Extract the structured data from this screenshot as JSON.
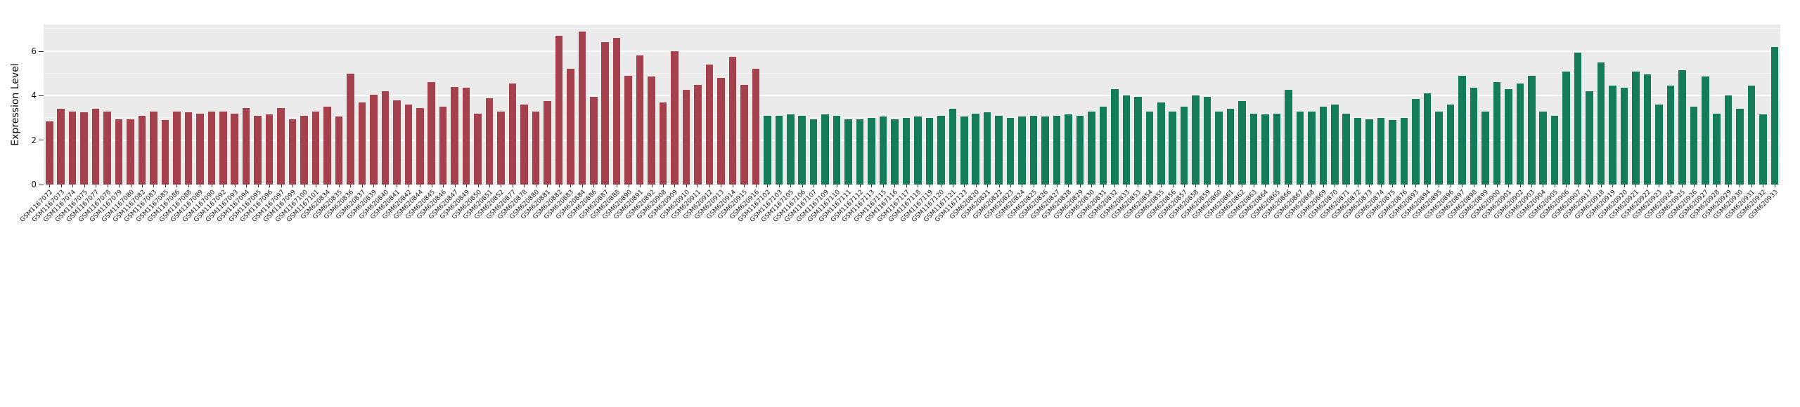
{
  "chart_data": {
    "type": "bar",
    "title": "",
    "xlabel": "",
    "ylabel": "Expression Level",
    "ylim": [
      0,
      7.2
    ],
    "yticks": [
      0,
      2,
      4,
      6
    ],
    "yticks_minor": [
      1,
      3,
      5,
      7
    ],
    "grid": "horizontal white major and minor gridlines on light gray panel",
    "legend": "none",
    "panel_background": "#EBEBEB",
    "series": [
      {
        "name": "red-group",
        "color": "#A5414D",
        "samples": [
          "GSM1167072",
          "GSM1167073",
          "GSM1167074",
          "GSM1167075",
          "GSM1167077",
          "GSM1167078",
          "GSM1167079",
          "GSM1167080",
          "GSM1167082",
          "GSM1167083",
          "GSM1167085",
          "GSM1167086",
          "GSM1167088",
          "GSM1167089",
          "GSM1167090",
          "GSM1167092",
          "GSM1167093",
          "GSM1167094",
          "GSM1167095",
          "GSM1167096",
          "GSM1167097",
          "GSM1167099",
          "GSM1167100",
          "GSM1167101",
          "GSM620834",
          "GSM620835",
          "GSM620836",
          "GSM620837",
          "GSM620839",
          "GSM620840",
          "GSM620841",
          "GSM620842",
          "GSM620844",
          "GSM620845",
          "GSM620846",
          "GSM620847",
          "GSM620849",
          "GSM620850",
          "GSM620851",
          "GSM620852",
          "GSM620877",
          "GSM620878",
          "GSM620880",
          "GSM620881",
          "GSM620882",
          "GSM620883",
          "GSM620884",
          "GSM620886",
          "GSM620887",
          "GSM620888",
          "GSM620890",
          "GSM620891",
          "GSM620892",
          "GSM620908",
          "GSM620909",
          "GSM620910",
          "GSM620911",
          "GSM620912",
          "GSM620913",
          "GSM620914",
          "GSM620915",
          "GSM620916"
        ],
        "values": [
          2.85,
          3.4,
          3.3,
          3.25,
          3.4,
          3.3,
          2.95,
          2.95,
          3.1,
          3.3,
          2.9,
          3.3,
          3.25,
          3.2,
          3.3,
          3.3,
          3.2,
          3.45,
          3.1,
          3.15,
          3.45,
          2.95,
          3.1,
          3.3,
          3.5,
          3.05,
          5.0,
          3.7,
          4.05,
          4.2,
          3.8,
          3.6,
          3.45,
          4.6,
          3.5,
          4.4,
          4.35,
          3.2,
          3.9,
          3.3,
          4.55,
          3.6,
          3.3,
          3.75,
          6.7,
          5.2,
          6.9,
          3.95,
          6.4,
          6.6,
          4.9,
          5.8,
          4.85,
          3.7,
          6.0,
          4.25,
          4.5,
          5.4,
          4.8,
          5.75,
          4.5,
          5.2
        ]
      },
      {
        "name": "green-group",
        "color": "#147C5A",
        "samples": [
          "GSM1167102",
          "GSM1167103",
          "GSM1167105",
          "GSM1167106",
          "GSM1167107",
          "GSM1167109",
          "GSM1167110",
          "GSM1167111",
          "GSM1167112",
          "GSM1167113",
          "GSM1167115",
          "GSM1167116",
          "GSM1167117",
          "GSM1167118",
          "GSM1167119",
          "GSM1167120",
          "GSM1167121",
          "GSM1167123",
          "GSM620820",
          "GSM620821",
          "GSM620822",
          "GSM620823",
          "GSM620824",
          "GSM620825",
          "GSM620826",
          "GSM620827",
          "GSM620828",
          "GSM620829",
          "GSM620830",
          "GSM620831",
          "GSM620832",
          "GSM620833",
          "GSM620853",
          "GSM620854",
          "GSM620855",
          "GSM620856",
          "GSM620857",
          "GSM620858",
          "GSM620859",
          "GSM620860",
          "GSM620861",
          "GSM620862",
          "GSM620863",
          "GSM620864",
          "GSM620865",
          "GSM620866",
          "GSM620867",
          "GSM620868",
          "GSM620869",
          "GSM620870",
          "GSM620871",
          "GSM620872",
          "GSM620873",
          "GSM620874",
          "GSM620875",
          "GSM620876",
          "GSM620893",
          "GSM620894",
          "GSM620895",
          "GSM620896",
          "GSM620897",
          "GSM620898",
          "GSM620899",
          "GSM620900",
          "GSM620901",
          "GSM620902",
          "GSM620903",
          "GSM620904",
          "GSM620905",
          "GSM620906",
          "GSM620907",
          "GSM620917",
          "GSM620918",
          "GSM620919",
          "GSM620920",
          "GSM620921",
          "GSM620922",
          "GSM620923",
          "GSM620924",
          "GSM620925",
          "GSM620926",
          "GSM620927",
          "GSM620928",
          "GSM620929",
          "GSM620930",
          "GSM620931",
          "GSM620932",
          "GSM620933"
        ],
        "values": [
          3.1,
          3.1,
          3.15,
          3.1,
          2.95,
          3.15,
          3.1,
          2.95,
          2.95,
          3.0,
          3.05,
          2.95,
          3.0,
          3.05,
          3.0,
          3.1,
          3.4,
          3.05,
          3.2,
          3.25,
          3.1,
          3.0,
          3.05,
          3.1,
          3.05,
          3.1,
          3.15,
          3.1,
          3.3,
          3.5,
          4.3,
          4.0,
          3.95,
          3.3,
          3.7,
          3.3,
          3.5,
          4.0,
          3.95,
          3.3,
          3.4,
          3.75,
          3.2,
          3.15,
          3.2,
          4.25,
          3.3,
          3.3,
          3.5,
          3.6,
          3.2,
          3.0,
          2.95,
          3.0,
          2.9,
          3.0,
          3.85,
          4.1,
          3.3,
          3.6,
          4.9,
          4.35,
          3.3,
          4.6,
          4.3,
          4.55,
          4.9,
          3.3,
          3.1,
          5.1,
          5.95,
          4.2,
          5.5,
          4.45,
          4.35,
          5.1,
          4.95,
          3.6,
          4.45,
          5.15,
          3.5,
          4.85,
          3.2,
          4.0,
          3.4,
          4.45,
          3.15,
          6.2
        ]
      }
    ]
  }
}
